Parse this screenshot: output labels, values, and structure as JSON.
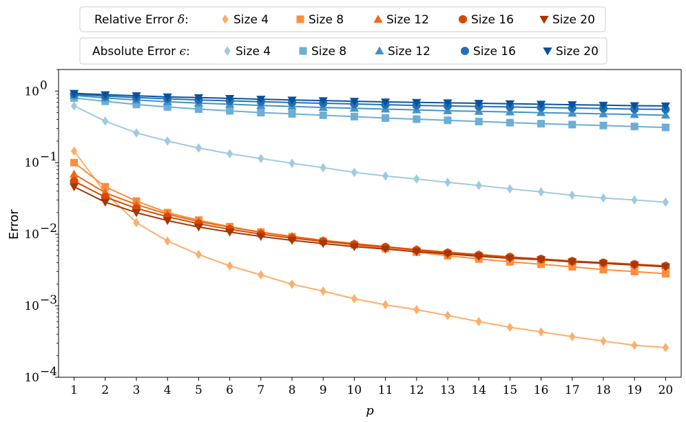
{
  "chart_data": {
    "type": "line",
    "yscale": "log",
    "xlabel": "p",
    "ylabel": "Error",
    "xlim": [
      0.5,
      20.5
    ],
    "ylim": [
      0.0001,
      2
    ],
    "x_ticks": [
      1,
      2,
      3,
      4,
      5,
      6,
      7,
      8,
      9,
      10,
      11,
      12,
      13,
      14,
      15,
      16,
      17,
      18,
      19,
      20
    ],
    "y_ticks": [
      {
        "value": 1,
        "base": "10",
        "exp": "0"
      },
      {
        "value": 0.1,
        "base": "10",
        "exp": "−1"
      },
      {
        "value": 0.01,
        "base": "10",
        "exp": "−2"
      },
      {
        "value": 0.001,
        "base": "10",
        "exp": "−3"
      },
      {
        "value": 0.0001,
        "base": "10",
        "exp": "−4"
      }
    ],
    "x": [
      1,
      2,
      3,
      4,
      5,
      6,
      7,
      8,
      9,
      10,
      11,
      12,
      13,
      14,
      15,
      16,
      17,
      18,
      19,
      20
    ],
    "legends": [
      {
        "title_text": "Relative Error ",
        "title_symbol": "δ",
        "title_colon": ":",
        "placement": "top-center"
      },
      {
        "title_text": "Absolute Error ",
        "title_symbol": "ϵ",
        "title_colon": ":",
        "placement": "top-center"
      }
    ],
    "series": [
      {
        "group": 0,
        "name": "Size 4",
        "marker": "diamond",
        "color": "#fdae6b",
        "values": [
          0.145,
          0.038,
          0.0145,
          0.008,
          0.0052,
          0.0036,
          0.0027,
          0.002,
          0.0016,
          0.00125,
          0.00103,
          0.00088,
          0.00073,
          0.0006,
          0.0005,
          0.00043,
          0.00037,
          0.00032,
          0.00028,
          0.00026
        ]
      },
      {
        "group": 0,
        "name": "Size 8",
        "marker": "square",
        "color": "#fd8d3c",
        "values": [
          0.1,
          0.046,
          0.029,
          0.02,
          0.0157,
          0.0127,
          0.0107,
          0.0092,
          0.008,
          0.0071,
          0.0063,
          0.0056,
          0.005,
          0.0045,
          0.0041,
          0.0038,
          0.0035,
          0.0032,
          0.003,
          0.0028
        ]
      },
      {
        "group": 0,
        "name": "Size 12",
        "marker": "triangle-up",
        "color": "#f16913",
        "values": [
          0.069,
          0.038,
          0.026,
          0.019,
          0.015,
          0.0125,
          0.0106,
          0.0093,
          0.0082,
          0.0074,
          0.0067,
          0.0061,
          0.0056,
          0.0052,
          0.0048,
          0.0045,
          0.0042,
          0.004,
          0.0038,
          0.0036
        ]
      },
      {
        "group": 0,
        "name": "Size 16",
        "marker": "circle",
        "color": "#d94801",
        "values": [
          0.055,
          0.033,
          0.023,
          0.0175,
          0.014,
          0.0117,
          0.01,
          0.0088,
          0.0079,
          0.0072,
          0.0066,
          0.006,
          0.0055,
          0.0051,
          0.0048,
          0.0045,
          0.0042,
          0.004,
          0.0038,
          0.0036
        ]
      },
      {
        "group": 0,
        "name": "Size 20",
        "marker": "triangle-down",
        "color": "#a63603",
        "values": [
          0.046,
          0.028,
          0.02,
          0.0155,
          0.0126,
          0.0107,
          0.0093,
          0.0082,
          0.0074,
          0.0067,
          0.0062,
          0.0057,
          0.0053,
          0.0049,
          0.0046,
          0.0044,
          0.0041,
          0.0039,
          0.0037,
          0.0035
        ]
      },
      {
        "group": 1,
        "name": "Size 4",
        "marker": "diamond",
        "color": "#9ecae1",
        "values": [
          0.62,
          0.38,
          0.26,
          0.2,
          0.16,
          0.133,
          0.114,
          0.098,
          0.085,
          0.073,
          0.065,
          0.059,
          0.053,
          0.048,
          0.043,
          0.039,
          0.035,
          0.032,
          0.03,
          0.028
        ]
      },
      {
        "group": 1,
        "name": "Size 8",
        "marker": "square",
        "color": "#6baed6",
        "values": [
          0.8,
          0.72,
          0.65,
          0.6,
          0.56,
          0.53,
          0.5,
          0.48,
          0.46,
          0.44,
          0.42,
          0.405,
          0.39,
          0.375,
          0.362,
          0.35,
          0.34,
          0.33,
          0.32,
          0.31
        ]
      },
      {
        "group": 1,
        "name": "Size 12",
        "marker": "triangle-up",
        "color": "#4292c6",
        "values": [
          0.87,
          0.8,
          0.75,
          0.71,
          0.68,
          0.655,
          0.63,
          0.61,
          0.59,
          0.575,
          0.56,
          0.545,
          0.53,
          0.52,
          0.51,
          0.5,
          0.49,
          0.48,
          0.47,
          0.46
        ]
      },
      {
        "group": 1,
        "name": "Size 16",
        "marker": "circle",
        "color": "#2171b5",
        "values": [
          0.9,
          0.85,
          0.81,
          0.78,
          0.75,
          0.73,
          0.71,
          0.69,
          0.675,
          0.66,
          0.645,
          0.63,
          0.62,
          0.61,
          0.6,
          0.59,
          0.58,
          0.57,
          0.56,
          0.555
        ]
      },
      {
        "group": 1,
        "name": "Size 20",
        "marker": "triangle-down",
        "color": "#08519c",
        "values": [
          0.93,
          0.89,
          0.86,
          0.83,
          0.81,
          0.79,
          0.77,
          0.75,
          0.735,
          0.72,
          0.705,
          0.695,
          0.685,
          0.675,
          0.665,
          0.655,
          0.645,
          0.635,
          0.625,
          0.62
        ]
      }
    ]
  }
}
